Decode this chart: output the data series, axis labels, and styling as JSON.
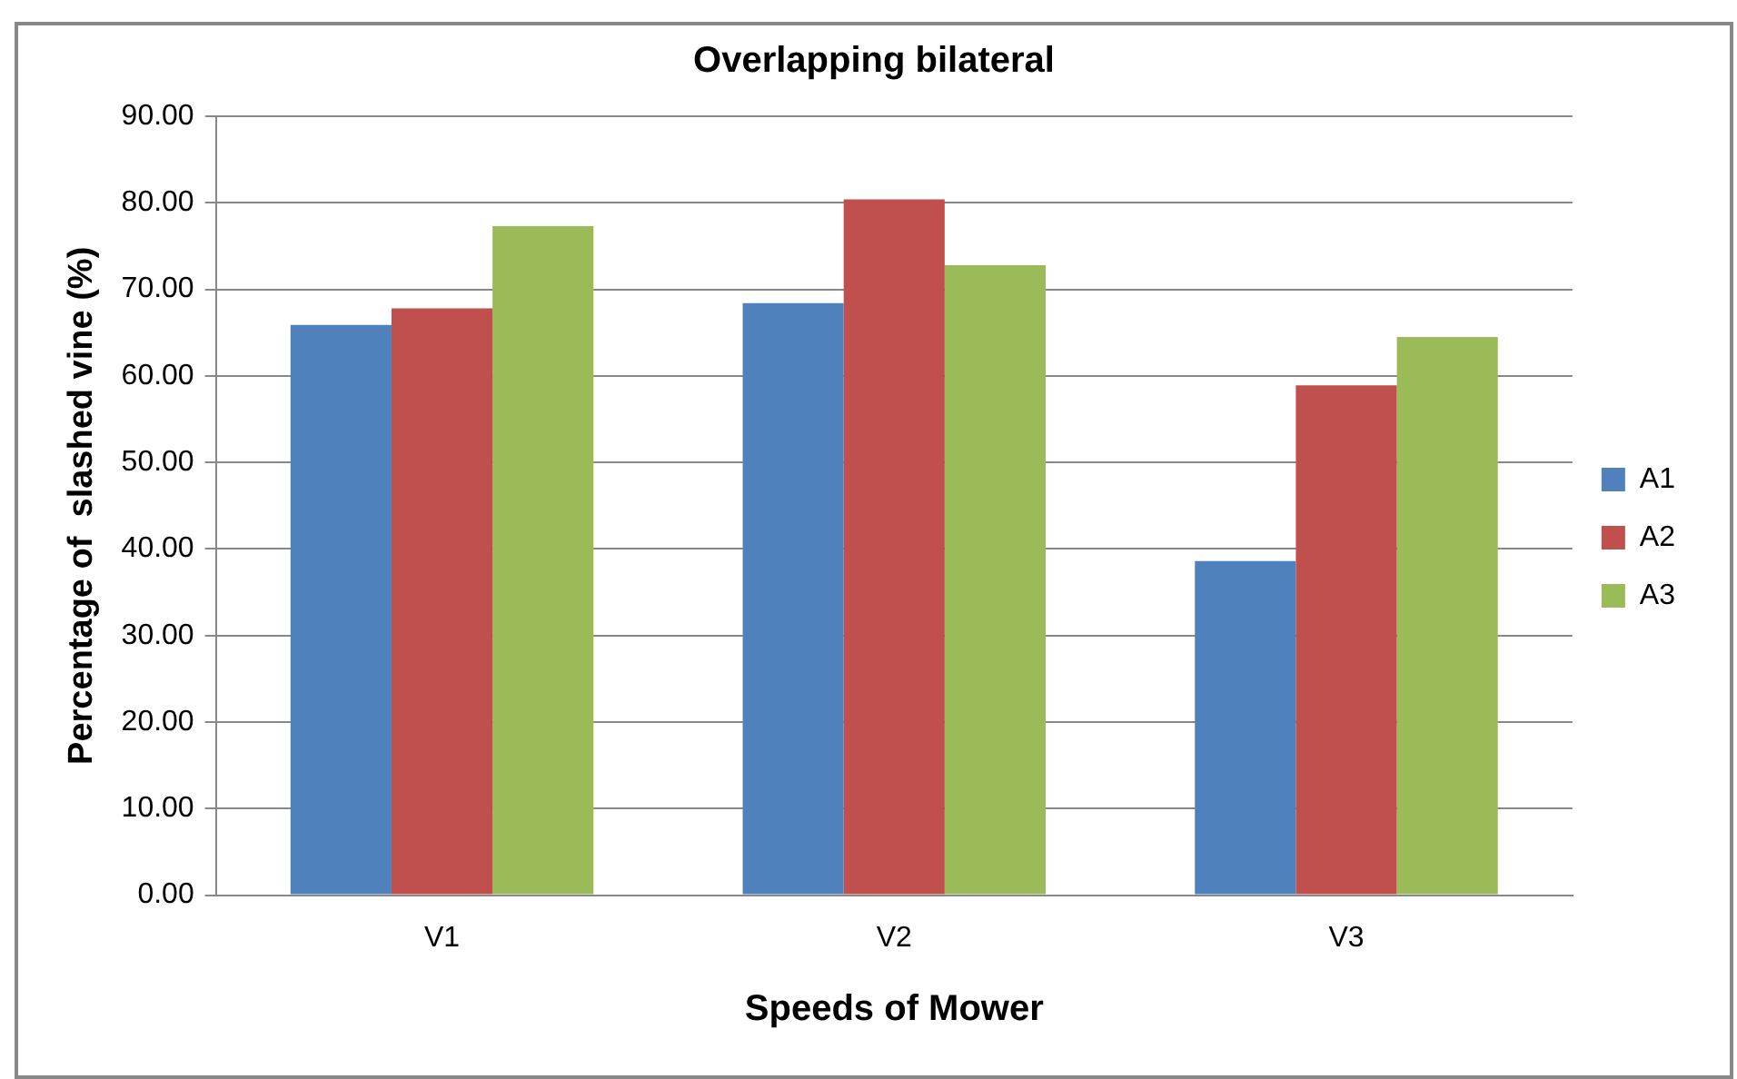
{
  "chart_data": {
    "type": "bar",
    "title": "Overlapping bilateral",
    "xlabel": "Speeds of Mower",
    "ylabel": "Percentage of  slashed vine (%)",
    "categories": [
      "V1",
      "V2",
      "V3"
    ],
    "series": [
      {
        "name": "A1",
        "color": "#4f81bd",
        "values": [
          65.9,
          68.4,
          38.6
        ]
      },
      {
        "name": "A2",
        "color": "#c0504d",
        "values": [
          67.8,
          80.4,
          58.9
        ]
      },
      {
        "name": "A3",
        "color": "#9bbb59",
        "values": [
          77.3,
          72.8,
          64.5
        ]
      }
    ],
    "ylim": [
      0,
      90
    ],
    "yticks": [
      {
        "value": 0,
        "label": "0.00"
      },
      {
        "value": 10,
        "label": "10.00"
      },
      {
        "value": 20,
        "label": "20.00"
      },
      {
        "value": 30,
        "label": "30.00"
      },
      {
        "value": 40,
        "label": "40.00"
      },
      {
        "value": 50,
        "label": "50.00"
      },
      {
        "value": 60,
        "label": "60.00"
      },
      {
        "value": 70,
        "label": "70.00"
      },
      {
        "value": 80,
        "label": "80.00"
      },
      {
        "value": 90,
        "label": "90.00"
      }
    ],
    "grid": "y",
    "legend": "right"
  }
}
